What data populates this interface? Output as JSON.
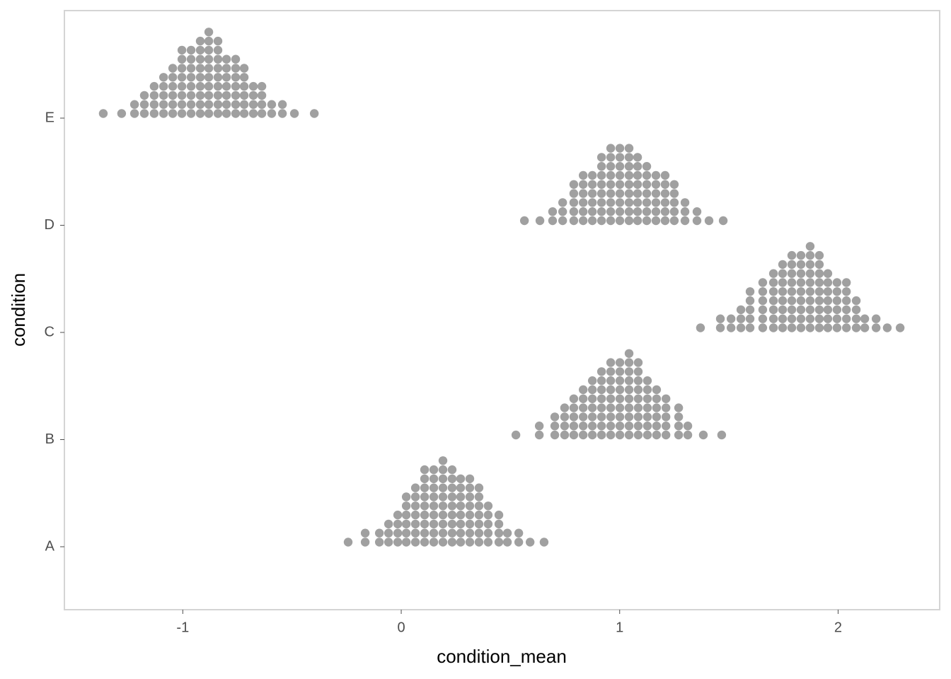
{
  "chart_data": {
    "type": "dots",
    "x_label": "condition_mean",
    "y_label": "condition",
    "color": "#a0a0a0",
    "xlim": [
      -1.542,
      2.465
    ],
    "xticks": [
      -1,
      0,
      1,
      2
    ],
    "categories": [
      "A",
      "B",
      "C",
      "D",
      "E"
    ],
    "groups": [
      {
        "x": [
          -0.243,
          -0.165,
          -0.1,
          -0.058,
          -0.016,
          0.023,
          0.065,
          0.107,
          0.149,
          0.191,
          0.233,
          0.272,
          0.314,
          0.356,
          0.398,
          0.447,
          0.486,
          0.538,
          0.59,
          0.654
        ],
        "counts": [
          1,
          2,
          2,
          3,
          4,
          6,
          7,
          9,
          9,
          10,
          9,
          8,
          8,
          7,
          5,
          4,
          2,
          2,
          1,
          1
        ]
      },
      {
        "x": [
          0.525,
          0.632,
          0.703,
          0.748,
          0.79,
          0.833,
          0.875,
          0.917,
          0.959,
          1.001,
          1.043,
          1.085,
          1.127,
          1.169,
          1.212,
          1.27,
          1.312,
          1.383,
          1.467
        ],
        "counts": [
          1,
          2,
          3,
          4,
          5,
          6,
          7,
          8,
          9,
          9,
          10,
          9,
          7,
          6,
          5,
          4,
          2,
          1,
          1
        ]
      },
      {
        "x": [
          1.37,
          1.461,
          1.51,
          1.555,
          1.597,
          1.655,
          1.704,
          1.746,
          1.788,
          1.83,
          1.872,
          1.914,
          1.953,
          1.995,
          2.038,
          2.083,
          2.122,
          2.174,
          2.225,
          2.284
        ],
        "counts": [
          1,
          2,
          2,
          3,
          5,
          6,
          7,
          8,
          9,
          9,
          10,
          9,
          7,
          6,
          6,
          4,
          2,
          2,
          1,
          1
        ]
      },
      {
        "x": [
          0.564,
          0.635,
          0.693,
          0.739,
          0.79,
          0.833,
          0.875,
          0.917,
          0.959,
          1.001,
          1.043,
          1.082,
          1.124,
          1.166,
          1.208,
          1.25,
          1.299,
          1.354,
          1.409,
          1.474
        ],
        "counts": [
          1,
          1,
          2,
          3,
          5,
          6,
          6,
          8,
          9,
          9,
          9,
          8,
          7,
          6,
          6,
          5,
          3,
          2,
          1,
          1
        ]
      },
      {
        "x": [
          -1.364,
          -1.28,
          -1.221,
          -1.176,
          -1.131,
          -1.088,
          -1.046,
          -1.004,
          -0.962,
          -0.92,
          -0.881,
          -0.839,
          -0.8,
          -0.758,
          -0.719,
          -0.677,
          -0.638,
          -0.593,
          -0.544,
          -0.489,
          -0.398
        ],
        "counts": [
          1,
          1,
          2,
          3,
          4,
          5,
          6,
          8,
          8,
          9,
          10,
          9,
          7,
          7,
          6,
          4,
          4,
          2,
          2,
          1,
          1
        ]
      }
    ]
  }
}
